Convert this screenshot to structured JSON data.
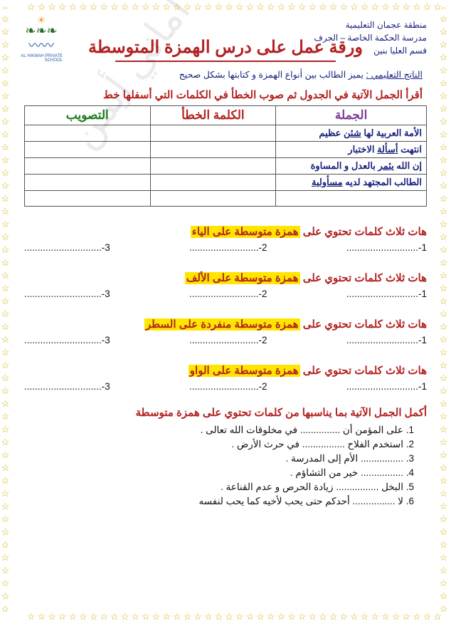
{
  "border": {
    "star": "☆",
    "repeat": 50
  },
  "header": {
    "line1": "منطقة عجمان التعليمية",
    "line2": "مدرسة الحكمة الخاصة – الجرف",
    "line3": "قسم العليا بنين"
  },
  "title": "ورقة عمل على درس الهمزة المتوسطة",
  "objective_label": "الناتج التعليمي :",
  "objective_text": "يميز الطالب بين أنواع الهمزة و كتابتها بشكل صحيح",
  "table_instruction": "أقرأ الجمل الآتية في الجدول ثم صوب الخطأ في الكلمات التي أسفلها خط",
  "table": {
    "headers": {
      "c1": "الجملة",
      "c2": "الكلمة الخطأ",
      "c3": "التصويب"
    },
    "rows": [
      {
        "pre": "الأمة العربية لها ",
        "u": "شئن",
        "post": " عظيم"
      },
      {
        "pre": "انتهت ",
        "u": "أسألة",
        "post": " الاختبار"
      },
      {
        "pre": "إن الله ",
        "u": "يئمر",
        "post": " بالعدل و المساوة"
      },
      {
        "pre": "الطالب المجتهد لديه ",
        "u": "مسأولية",
        "post": ""
      }
    ]
  },
  "sections": [
    {
      "lead": "هات ثلاث كلمات تحتوي على ",
      "hl": "همزة متوسطة على الياء"
    },
    {
      "lead": "هات ثلاث كلمات تحتوي على ",
      "hl": "همزة متوسطة على الألف"
    },
    {
      "lead": "هات ثلاث كلمات تحتوي على ",
      "hl": "همزة متوسطة منفردة على السطر"
    },
    {
      "lead": "هات ثلاث كلمات تحتوي على ",
      "hl": "همزة متوسطة على الواو"
    }
  ],
  "blank_row": {
    "b1": "1-...........................",
    "b2": "2-..........................",
    "b3": "3-............................."
  },
  "fill_prompt": "أكمل الجمل الآتية بما يناسبها من كلمات تحتوي على همزة متوسطة",
  "fill": [
    "على المؤمن أن ............... في مخلوقات الله تعالى .",
    "استخدم الفلاح ................ في حرث الأرض .",
    "................ الأم إلى المدرسة .",
    "................ خير من التشاؤم .",
    "البخل ................ زيادة الحرص و عدم القناعة .",
    "لا ................ أحدكم حتى يحب لأخيه كما يحب لنفسه"
  ],
  "watermark": "إعداد المعلمة أماني أيمن",
  "colors": {
    "red": "#b22222",
    "navy": "#1a237e",
    "green": "#1e7b1e",
    "purple": "#7a3b94",
    "yellow": "#ffe600",
    "gold": "#d4af00"
  }
}
